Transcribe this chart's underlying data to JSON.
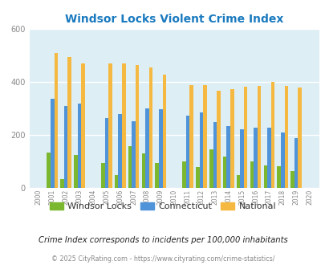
{
  "title": "Windsor Locks Violent Crime Index",
  "years": [
    2000,
    2001,
    2002,
    2003,
    2004,
    2005,
    2006,
    2007,
    2008,
    2009,
    2010,
    2011,
    2012,
    2013,
    2014,
    2015,
    2016,
    2017,
    2018,
    2019,
    2020
  ],
  "windsor_locks": [
    0,
    135,
    35,
    125,
    0,
    95,
    50,
    160,
    130,
    95,
    0,
    100,
    80,
    145,
    120,
    48,
    100,
    85,
    82,
    65,
    0
  ],
  "connecticut": [
    0,
    338,
    310,
    318,
    0,
    265,
    280,
    252,
    300,
    298,
    0,
    275,
    285,
    250,
    235,
    222,
    228,
    228,
    210,
    190,
    0
  ],
  "national": [
    0,
    510,
    495,
    472,
    0,
    470,
    472,
    465,
    455,
    428,
    0,
    390,
    390,
    368,
    375,
    382,
    387,
    400,
    385,
    379,
    0
  ],
  "color_windsor": "#7cb82f",
  "color_connecticut": "#4f93d8",
  "color_national": "#f5b942",
  "bg_color": "#ddeef4",
  "ylim": [
    0,
    600
  ],
  "yticks": [
    0,
    200,
    400,
    600
  ],
  "subtitle": "Crime Index corresponds to incidents per 100,000 inhabitants",
  "footer": "© 2025 CityRating.com - https://www.cityrating.com/crime-statistics/",
  "bar_width": 0.27,
  "grid_color": "#ffffff",
  "tick_color": "#888888",
  "title_color": "#1a7abf",
  "subtitle_color": "#222222",
  "footer_color": "#888888"
}
